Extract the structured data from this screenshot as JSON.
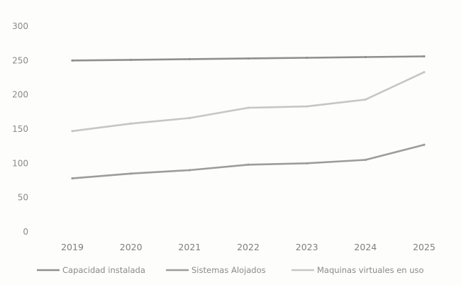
{
  "chart_data": {
    "type": "line",
    "x": [
      "2019",
      "2020",
      "2021",
      "2022",
      "2023",
      "2024",
      "2025"
    ],
    "ylim": [
      0,
      300
    ],
    "yticks": [
      "0",
      "50",
      "100",
      "150",
      "200",
      "250",
      "300"
    ],
    "grid": false,
    "legend_position": "bottom",
    "series": [
      {
        "name": "Capacidad instalada",
        "values": [
          250,
          251,
          252,
          253,
          254,
          255,
          256
        ],
        "color": "#8f8f8f"
      },
      {
        "name": "Sistemas Alojados",
        "values": [
          78,
          85,
          90,
          98,
          100,
          105,
          127
        ],
        "color": "#9c9c9c"
      },
      {
        "name": "Maquinas virtuales en uso",
        "values": [
          147,
          158,
          166,
          181,
          183,
          193,
          233
        ],
        "color": "#c6c6c6"
      }
    ]
  }
}
